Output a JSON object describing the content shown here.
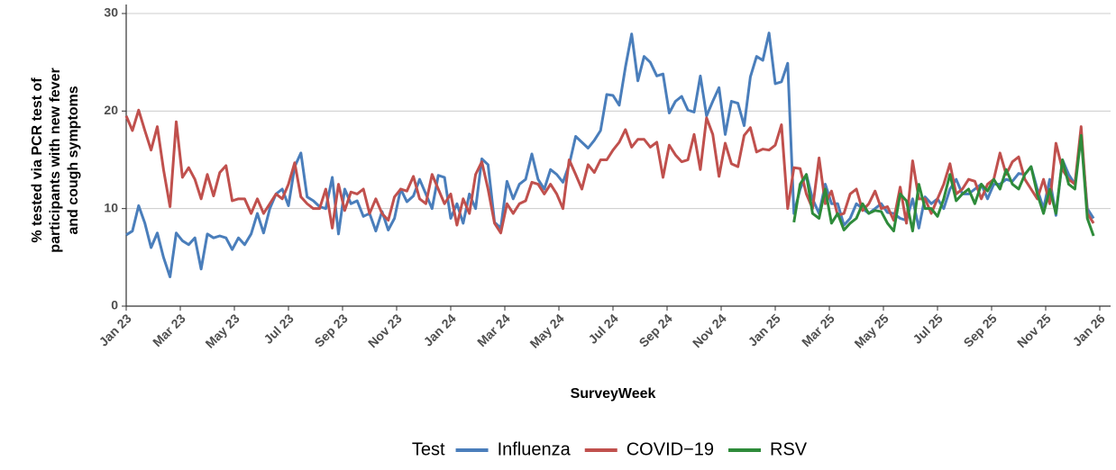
{
  "chart_data": {
    "type": "line",
    "xlabel": "SurveyWeek",
    "ylabel": [
      "% tested via PCR test of",
      "participants with new fever",
      "and cough symptoms"
    ],
    "legend_title": "Test",
    "legend_position": "bottom",
    "grid": "y",
    "xlim": [
      0,
      36.4
    ],
    "ylim": [
      0,
      30
    ],
    "yticks": [
      0,
      10,
      20,
      30
    ],
    "xticks": [
      {
        "value": 0,
        "label": "Jan 23"
      },
      {
        "value": 2,
        "label": "Mar 23"
      },
      {
        "value": 4,
        "label": "May 23"
      },
      {
        "value": 6,
        "label": "Jul 23"
      },
      {
        "value": 8,
        "label": "Sep 23"
      },
      {
        "value": 10,
        "label": "Nov 23"
      },
      {
        "value": 12,
        "label": "Jan 24"
      },
      {
        "value": 14,
        "label": "Mar 24"
      },
      {
        "value": 16,
        "label": "May 24"
      },
      {
        "value": 18,
        "label": "Jul 24"
      },
      {
        "value": 20,
        "label": "Sep 24"
      },
      {
        "value": 22,
        "label": "Nov 24"
      },
      {
        "value": 24,
        "label": "Jan 25"
      },
      {
        "value": 26,
        "label": "Mar 25"
      },
      {
        "value": 28,
        "label": "May 25"
      },
      {
        "value": 30,
        "label": "Jul 25"
      },
      {
        "value": 32,
        "label": "Sep 25"
      },
      {
        "value": 34,
        "label": "Nov 25"
      },
      {
        "value": 36,
        "label": "Jan 26"
      }
    ],
    "x": [
      0,
      0.23,
      0.46,
      0.69,
      0.92,
      1.15,
      1.38,
      1.62,
      1.85,
      2.08,
      2.31,
      2.54,
      2.77,
      3,
      3.23,
      3.46,
      3.69,
      3.92,
      4.15,
      4.38,
      4.62,
      4.85,
      5.08,
      5.31,
      5.54,
      5.77,
      6,
      6.23,
      6.46,
      6.69,
      6.92,
      7.15,
      7.38,
      7.62,
      7.85,
      8.08,
      8.31,
      8.54,
      8.77,
      9,
      9.23,
      9.46,
      9.69,
      9.92,
      10.15,
      10.38,
      10.62,
      10.85,
      11.08,
      11.31,
      11.54,
      11.77,
      12,
      12.23,
      12.46,
      12.69,
      12.92,
      13.15,
      13.38,
      13.62,
      13.85,
      14.08,
      14.31,
      14.54,
      14.77,
      15,
      15.23,
      15.46,
      15.69,
      15.92,
      16.15,
      16.38,
      16.62,
      16.85,
      17.08,
      17.31,
      17.54,
      17.77,
      18,
      18.23,
      18.46,
      18.69,
      18.92,
      19.15,
      19.38,
      19.62,
      19.85,
      20.08,
      20.31,
      20.54,
      20.77,
      21,
      21.23,
      21.46,
      21.69,
      21.92,
      22.15,
      22.38,
      22.62,
      22.85,
      23.08,
      23.31,
      23.54,
      23.77,
      24,
      24.23,
      24.46,
      24.69,
      24.92,
      25.15,
      25.38,
      25.62,
      25.85,
      26.08,
      26.31,
      26.54,
      26.77,
      27,
      27.23,
      27.46,
      27.69,
      27.92,
      28.15,
      28.38,
      28.62,
      28.85,
      29.08,
      29.31,
      29.54,
      29.77,
      30,
      30.23,
      30.46,
      30.69,
      30.92,
      31.15,
      31.38,
      31.62,
      31.85,
      32.08,
      32.31,
      32.54,
      32.77,
      33,
      33.23,
      33.46,
      33.69,
      33.92,
      34.15,
      34.38,
      34.62,
      34.85,
      35.08,
      35.31,
      35.54,
      35.77
    ],
    "series": [
      {
        "name": "Influenza",
        "color": "#4a7ebb",
        "values": [
          7.3,
          7.7,
          10.3,
          8.5,
          6.0,
          7.5,
          5.0,
          3.0,
          7.5,
          6.7,
          6.3,
          7.0,
          3.8,
          7.4,
          7.0,
          7.2,
          7.0,
          5.8,
          7.0,
          6.3,
          7.4,
          9.5,
          7.5,
          10.0,
          11.5,
          12.0,
          10.3,
          14.3,
          15.7,
          11.2,
          10.8,
          10.2,
          10.0,
          13.2,
          7.4,
          12.0,
          10.5,
          10.8,
          9.2,
          9.5,
          7.7,
          9.7,
          7.8,
          9.0,
          12.0,
          10.7,
          11.3,
          13.0,
          11.5,
          10.0,
          13.4,
          13.2,
          9.0,
          10.5,
          8.5,
          11.5,
          10.0,
          15.1,
          14.5,
          8.6,
          8.0,
          12.8,
          11.0,
          12.5,
          13.0,
          15.6,
          13.0,
          12.0,
          14.0,
          13.5,
          12.7,
          14.5,
          17.4,
          16.8,
          16.2,
          17.0,
          18.0,
          21.7,
          21.6,
          20.6,
          24.5,
          27.9,
          23.1,
          25.6,
          25.0,
          23.6,
          23.8,
          19.8,
          21.0,
          21.5,
          20.1,
          19.9,
          23.6,
          19.5,
          21.0,
          22.4,
          17.6,
          21.0,
          20.8,
          18.5,
          23.5,
          25.6,
          25.2,
          28.0,
          22.8,
          23.0,
          24.9,
          9.5,
          12.0,
          13.5,
          11.0,
          9.5,
          12.5,
          10.5,
          10.5,
          8.3,
          9.0,
          10.5,
          10.0,
          9.5,
          10.0,
          10.5,
          9.6,
          9.5,
          9.0,
          8.8,
          11.0,
          8.0,
          11.2,
          10.5,
          11.0,
          10.0,
          12.0,
          13.0,
          11.5,
          11.5,
          12.0,
          12.5,
          11.0,
          12.5,
          12.5,
          13.0,
          12.8,
          13.6,
          13.5,
          14.3,
          12.0,
          10.0,
          13.0,
          9.3,
          15.0,
          13.5,
          12.5,
          17.5,
          10.0,
          9.0
        ]
      },
      {
        "name": "COVID−19",
        "color": "#c0504d",
        "values": [
          19.5,
          18.0,
          20.1,
          18.0,
          16.0,
          18.4,
          14.0,
          10.2,
          18.9,
          13.2,
          14.2,
          13.0,
          11.0,
          13.5,
          11.3,
          13.7,
          14.4,
          10.8,
          11.0,
          11.0,
          9.5,
          11.0,
          9.5,
          10.5,
          11.5,
          11.0,
          12.5,
          14.7,
          11.2,
          10.5,
          10.0,
          10.0,
          12.0,
          8.0,
          12.5,
          9.8,
          11.7,
          11.5,
          12.0,
          9.5,
          11.0,
          9.5,
          8.8,
          11.2,
          12.0,
          11.8,
          13.3,
          11.0,
          10.5,
          13.5,
          12.0,
          10.5,
          11.5,
          8.3,
          11.0,
          9.5,
          13.5,
          14.8,
          12.0,
          8.5,
          7.5,
          10.5,
          9.5,
          10.5,
          10.8,
          12.7,
          12.5,
          11.5,
          12.5,
          11.5,
          10.0,
          15.0,
          13.5,
          12.0,
          14.5,
          13.7,
          15.0,
          15.0,
          16.0,
          16.8,
          18.1,
          16.3,
          17.1,
          17.1,
          16.3,
          16.8,
          13.2,
          16.5,
          15.5,
          14.8,
          15.0,
          17.6,
          14.0,
          19.3,
          17.6,
          13.3,
          16.7,
          14.6,
          14.3,
          17.5,
          18.3,
          15.8,
          16.1,
          16.0,
          16.5,
          18.6,
          10.0,
          14.2,
          14.1,
          11.5,
          10.0,
          15.2,
          10.5,
          11.8,
          9.3,
          9.5,
          11.5,
          12.0,
          9.8,
          10.5,
          11.8,
          10.0,
          10.2,
          8.8,
          12.2,
          8.5,
          14.9,
          11.0,
          11.0,
          9.5,
          11.0,
          12.5,
          14.6,
          11.5,
          12.0,
          13.0,
          12.8,
          11.0,
          12.5,
          13.0,
          15.7,
          13.5,
          14.8,
          15.3,
          13.0,
          12.0,
          11.0,
          13.0,
          10.5,
          16.7,
          14.0,
          13.0,
          12.5,
          18.4,
          9.5,
          8.5
        ]
      },
      {
        "name": "RSV",
        "color": "#2e8b3a",
        "values": [
          null,
          null,
          null,
          null,
          null,
          null,
          null,
          null,
          null,
          null,
          null,
          null,
          null,
          null,
          null,
          null,
          null,
          null,
          null,
          null,
          null,
          null,
          null,
          null,
          null,
          null,
          null,
          null,
          null,
          null,
          null,
          null,
          null,
          null,
          null,
          null,
          null,
          null,
          null,
          null,
          null,
          null,
          null,
          null,
          null,
          null,
          null,
          null,
          null,
          null,
          null,
          null,
          null,
          null,
          null,
          null,
          null,
          null,
          null,
          null,
          null,
          null,
          null,
          null,
          null,
          null,
          null,
          null,
          null,
          null,
          null,
          null,
          null,
          null,
          null,
          null,
          null,
          null,
          null,
          null,
          null,
          null,
          null,
          null,
          null,
          null,
          null,
          null,
          null,
          null,
          null,
          null,
          null,
          null,
          null,
          null,
          null,
          null,
          null,
          null,
          null,
          null,
          null,
          null,
          null,
          null,
          null,
          8.6,
          12.5,
          13.5,
          9.5,
          9.0,
          12.0,
          8.5,
          9.5,
          7.8,
          8.5,
          9.0,
          10.5,
          9.5,
          9.8,
          9.7,
          8.5,
          7.7,
          11.5,
          10.8,
          7.7,
          12.5,
          10.0,
          10.0,
          9.2,
          11.0,
          13.5,
          10.8,
          11.5,
          12.0,
          10.5,
          12.5,
          11.8,
          13.0,
          12.0,
          14.0,
          12.5,
          12.0,
          13.5,
          14.3,
          11.5,
          9.5,
          12.0,
          9.5,
          15.0,
          12.5,
          12.0,
          17.5,
          9.0,
          7.2
        ]
      }
    ]
  }
}
